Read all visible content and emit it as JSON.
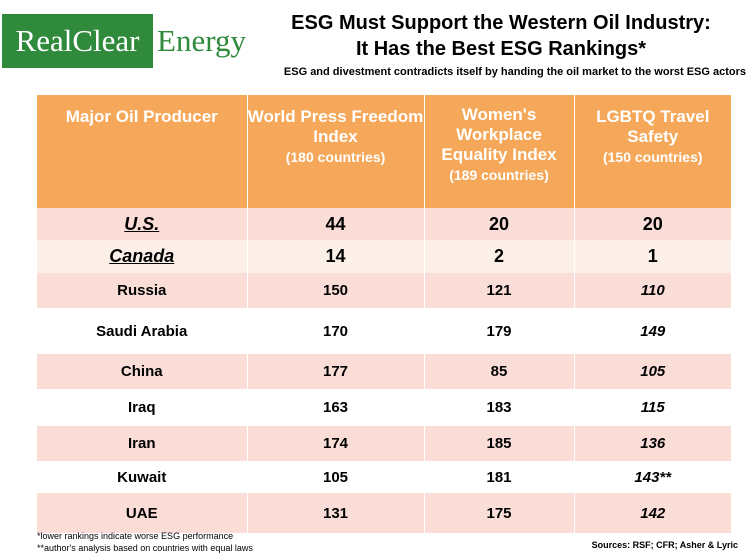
{
  "logo": {
    "left": "RealClear",
    "right": "Energy"
  },
  "title_line1": "ESG Must Support the Western Oil Industry:",
  "title_line2": "It Has the Best ESG Rankings*",
  "subtitle": "ESG and divestment contradicts itself by handing the oil market to the worst ESG actors",
  "headers": {
    "col1": "Major Oil Producer",
    "col2_main": "World Press Freedom Index",
    "col2_sub": "(180 countries)",
    "col3_main": "Women's Workplace Equality Index",
    "col3_sub": "(189 countries)",
    "col4_main": "LGBTQ Travel Safety",
    "col4_sub": "(150 countries)"
  },
  "rows": [
    {
      "country": "U.S.",
      "press": "44",
      "women": "20",
      "lgbtq": "20"
    },
    {
      "country": "Canada",
      "press": "14",
      "women": "2",
      "lgbtq": "1"
    },
    {
      "country": "Russia",
      "press": "150",
      "women": "121",
      "lgbtq": "110"
    },
    {
      "country": "Saudi Arabia",
      "press": "170",
      "women": "179",
      "lgbtq": "149"
    },
    {
      "country": "China",
      "press": "177",
      "women": "85",
      "lgbtq": "105"
    },
    {
      "country": "Iraq",
      "press": "163",
      "women": "183",
      "lgbtq": "115"
    },
    {
      "country": "Iran",
      "press": "174",
      "women": "185",
      "lgbtq": "136"
    },
    {
      "country": "Kuwait",
      "press": "105",
      "women": "181",
      "lgbtq": "143**"
    },
    {
      "country": "UAE",
      "press": "131",
      "women": "175",
      "lgbtq": "142"
    }
  ],
  "footnote1": "*lower rankings indicate worse ESG performance",
  "footnote2": "**author's analysis based on countries with equal laws",
  "sources": "Sources: RSF; CFR; Asher & Lyric",
  "colors": {
    "header": "#f6a85a",
    "pink_row": "#f9ddd6",
    "light_row": "#fcefe8",
    "logo_green": "#2f8a3c"
  }
}
